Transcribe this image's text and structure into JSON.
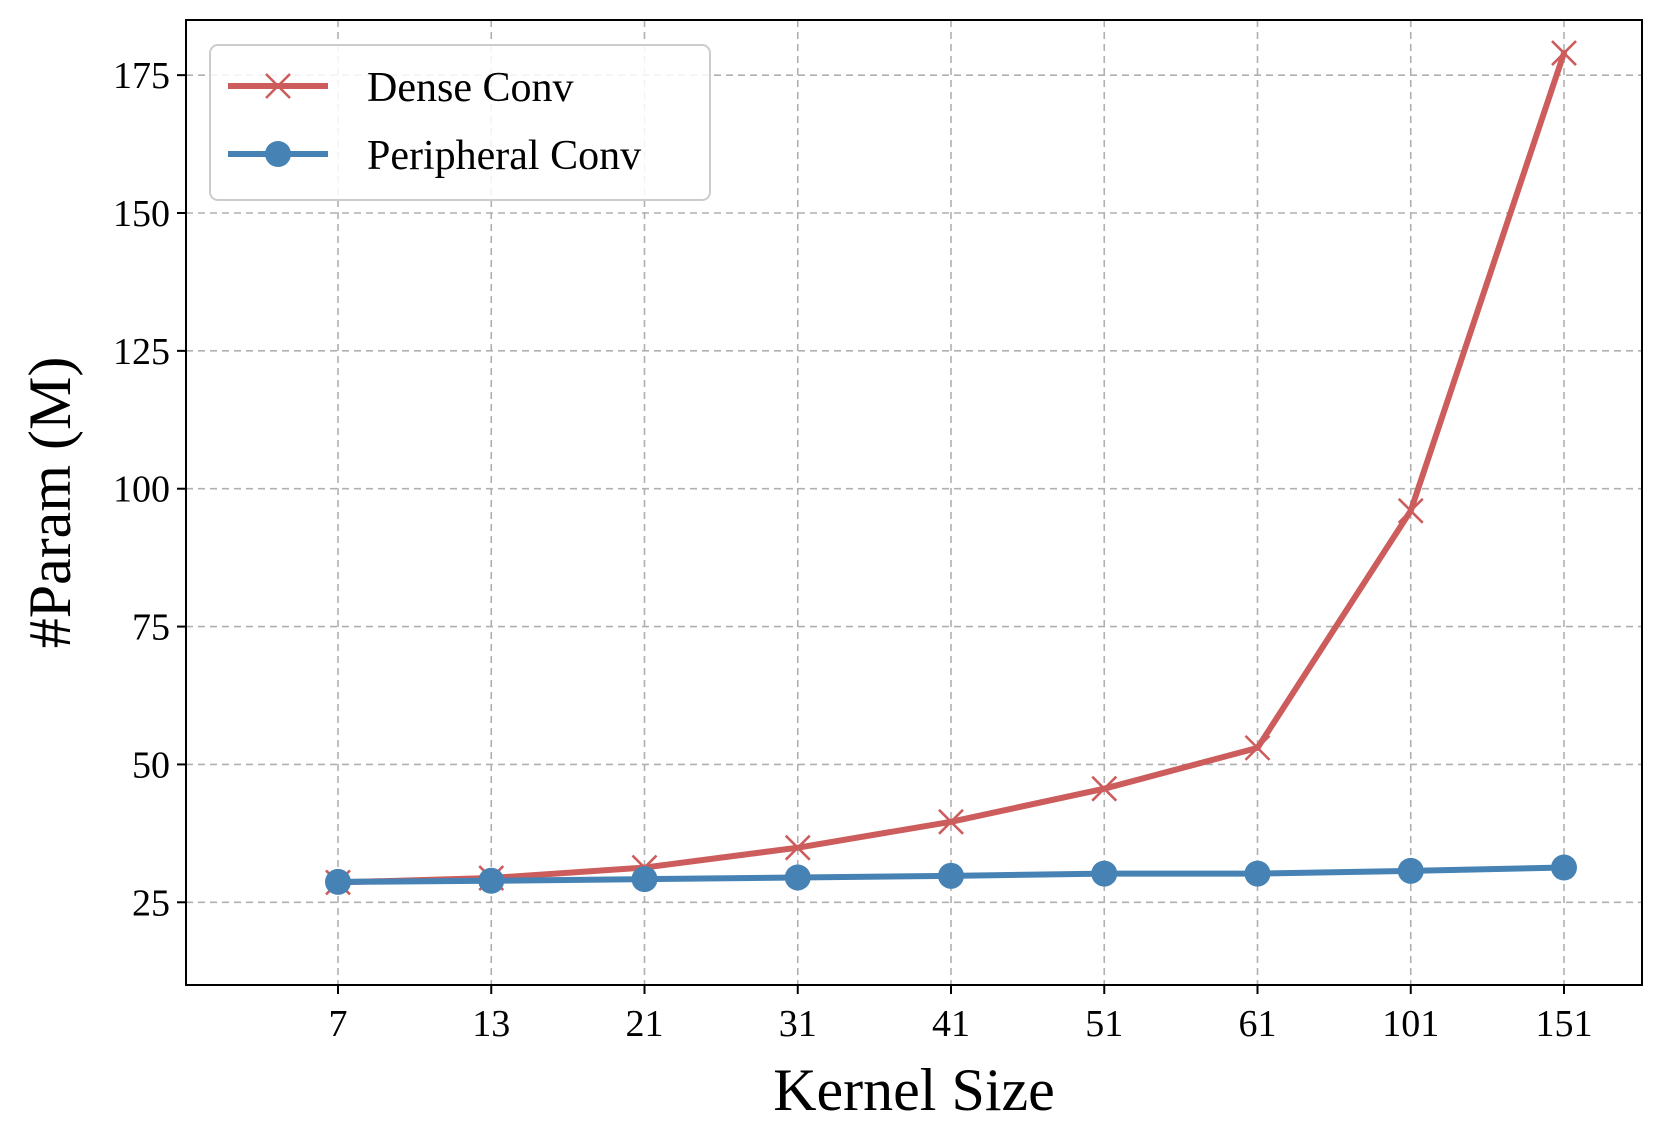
{
  "chart_data": {
    "type": "line",
    "title": "",
    "xlabel": "Kernel Size",
    "ylabel": "#Param (M)",
    "categories": [
      "7",
      "13",
      "21",
      "31",
      "41",
      "51",
      "61",
      "101",
      "151"
    ],
    "ylim": [
      10,
      185
    ],
    "yticks": [
      25,
      50,
      75,
      100,
      125,
      150,
      175
    ],
    "grid": true,
    "legend_position": "top-left",
    "series": [
      {
        "name": "Dense Conv",
        "marker": "x",
        "color": "#cd5c5c",
        "values": [
          28.6,
          29.4,
          31.3,
          34.9,
          39.6,
          45.6,
          53.0,
          96.0,
          179.0
        ]
      },
      {
        "name": "Peripheral Conv",
        "marker": "circle",
        "color": "#4682b4",
        "values": [
          28.7,
          28.9,
          29.2,
          29.5,
          29.8,
          30.2,
          30.2,
          30.7,
          31.3
        ]
      }
    ]
  }
}
